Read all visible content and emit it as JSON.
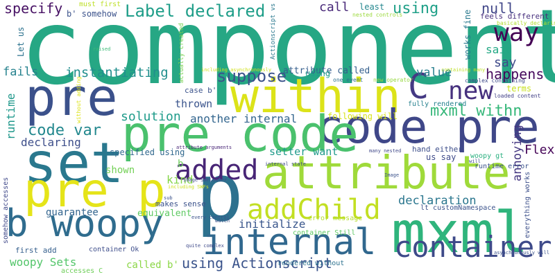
{
  "words": [
    {
      "text": "component",
      "color": "#26a784"
    },
    {
      "text": "p",
      "color": "#2d718e"
    },
    {
      "text": "pre",
      "color": "#3b518b"
    },
    {
      "text": "within",
      "color": "#dce319"
    },
    {
      "text": "code pre",
      "color": "#3f4788"
    },
    {
      "text": "pre code",
      "color": "#4ac16d"
    },
    {
      "text": "set",
      "color": "#2a788e"
    },
    {
      "text": "attribute",
      "color": "#9fda3a"
    },
    {
      "text": "pre p",
      "color": "#e5e419"
    },
    {
      "text": "b woopy",
      "color": "#2f6c8e"
    },
    {
      "text": "internal",
      "color": "#31688e"
    },
    {
      "text": "mxml",
      "color": "#2fb47c"
    },
    {
      "text": "container",
      "color": "#3e4a89"
    },
    {
      "text": "addChild",
      "color": "#c2df23"
    },
    {
      "text": "added",
      "color": "#482576"
    },
    {
      "text": "way",
      "color": "#440154"
    },
    {
      "text": "new",
      "color": "#46307e"
    },
    {
      "text": "C",
      "color": "#443983"
    },
    {
      "text": "Label declared",
      "color": "#1f9e89"
    },
    {
      "text": "specify",
      "color": "#471164"
    },
    {
      "text": "call",
      "color": "#482878"
    },
    {
      "text": "using",
      "color": "#1fa088"
    },
    {
      "text": "null",
      "color": "#404688"
    },
    {
      "text": "suppose",
      "color": "#3b528b"
    },
    {
      "text": "said",
      "color": "#22a884"
    },
    {
      "text": "say",
      "color": "#3e4989"
    },
    {
      "text": "fails",
      "color": "#26828e"
    },
    {
      "text": "instantiating",
      "color": "#218f8d"
    },
    {
      "text": "value",
      "color": "#277f8e"
    },
    {
      "text": "happens",
      "color": "#460a5d"
    },
    {
      "text": "mxml withn",
      "color": "#35b779"
    },
    {
      "text": "code var",
      "color": "#23888e"
    },
    {
      "text": "solution",
      "color": "#1e9b8a"
    },
    {
      "text": "another internal",
      "color": "#32658e"
    },
    {
      "text": "thrown",
      "color": "#3a548c"
    },
    {
      "text": "setter want",
      "color": "#1f9a8a"
    },
    {
      "text": "declaring",
      "color": "#3d4e8a"
    },
    {
      "text": "runtime",
      "color": "#1f988b"
    },
    {
      "text": "Flex",
      "color": "#450457"
    },
    {
      "text": "annoying",
      "color": "#453781"
    },
    {
      "text": "kind",
      "color": "#85d54a"
    },
    {
      "text": "shown",
      "color": "#73d056"
    },
    {
      "text": "b",
      "color": "#6ccd5a"
    },
    {
      "text": "declaration",
      "color": "#2a768e"
    },
    {
      "text": "guarantee",
      "color": "#32648e"
    },
    {
      "text": "equivalent",
      "color": "#5ec962"
    },
    {
      "text": "initialize",
      "color": "#39568c"
    },
    {
      "text": "woopy Sets",
      "color": "#52c569"
    },
    {
      "text": "called b'",
      "color": "#8bd646"
    },
    {
      "text": "using Actionscript",
      "color": "#3a538b"
    },
    {
      "text": "attribute called",
      "color": "#355f8d"
    },
    {
      "text": "terms",
      "color": "#c8e020"
    },
    {
      "text": "b' somehow",
      "color": "#3b528b"
    },
    {
      "text": "must first",
      "color": "#bddf26"
    },
    {
      "text": "least",
      "color": "#24868e"
    },
    {
      "text": "Let us",
      "color": "#2c728e"
    },
    {
      "text": "works fine",
      "color": "#29798e"
    },
    {
      "text": "feels different",
      "color": "#472f7d"
    },
    {
      "text": "following will",
      "color": "#d8e219"
    },
    {
      "text": "fully rendered",
      "color": "#26818e"
    },
    {
      "text": "using",
      "color": "#1f9e89"
    },
    {
      "text": "us say",
      "color": "#3e4a89"
    },
    {
      "text": "hand either",
      "color": "#3d4e8a"
    },
    {
      "text": "woopy gt",
      "color": "#29af7f"
    },
    {
      "text": "runtime error",
      "color": "#3b528b"
    },
    {
      "text": "everything works",
      "color": "#3c4f8a"
    },
    {
      "text": "specified using",
      "color": "#31688e"
    },
    {
      "text": "makes sense",
      "color": "#3b528b"
    },
    {
      "text": "first add",
      "color": "#355f8d"
    },
    {
      "text": "container Ok",
      "color": "#3d4d8a"
    },
    {
      "text": "container Still",
      "color": "#5ec962"
    },
    {
      "text": "rendered without",
      "color": "#2c718e"
    },
    {
      "text": "case b'",
      "color": "#3b528b"
    },
    {
      "text": "somehow accesses",
      "color": "#3f4889"
    },
    {
      "text": "accesses C",
      "color": "#6ece58"
    },
    {
      "text": "error message",
      "color": "#b5de2b"
    },
    {
      "text": "lt customNamespace",
      "color": "#3b528b"
    },
    {
      "text": "actually created",
      "color": "#7ad151"
    },
    {
      "text": "Actionscript vs",
      "color": "#2a788e"
    },
    {
      "text": "basically declaring",
      "color": "#b0dd2f"
    },
    {
      "text": "nested controls",
      "color": "#9bd93c"
    },
    {
      "text": "complex containing",
      "color": "#3e4a89"
    },
    {
      "text": "loaded content",
      "color": "#424186"
    },
    {
      "text": "one event",
      "color": "#2d708e"
    },
    {
      "text": "new operator",
      "color": "#95d840"
    },
    {
      "text": "containing many",
      "color": "#bddf26"
    },
    {
      "text": "including asynchronously",
      "color": "#d0e11c"
    },
    {
      "text": "without adding",
      "color": "#dde318"
    },
    {
      "text": "raised",
      "color": "#3aba76"
    },
    {
      "text": "internal state",
      "color": "#3e4a89"
    },
    {
      "text": "every control",
      "color": "#3b528b"
    },
    {
      "text": "image SWFLoader",
      "color": "#3e4989"
    },
    {
      "text": "including SWFs",
      "color": "#cde11d"
    },
    {
      "text": "attribute arguments",
      "color": "#482677"
    },
    {
      "text": "sub",
      "color": "#3b528b"
    },
    {
      "text": "many nested",
      "color": "#3f4788"
    },
    {
      "text": "will",
      "color": "#3e4a89"
    },
    {
      "text": "Image",
      "color": "#3b528b"
    },
    {
      "text": "watch",
      "color": "#3b528b"
    },
    {
      "text": "quite complex",
      "color": "#3e4989"
    },
    {
      "text": "asynchronously will",
      "color": "#3b528b"
    }
  ]
}
